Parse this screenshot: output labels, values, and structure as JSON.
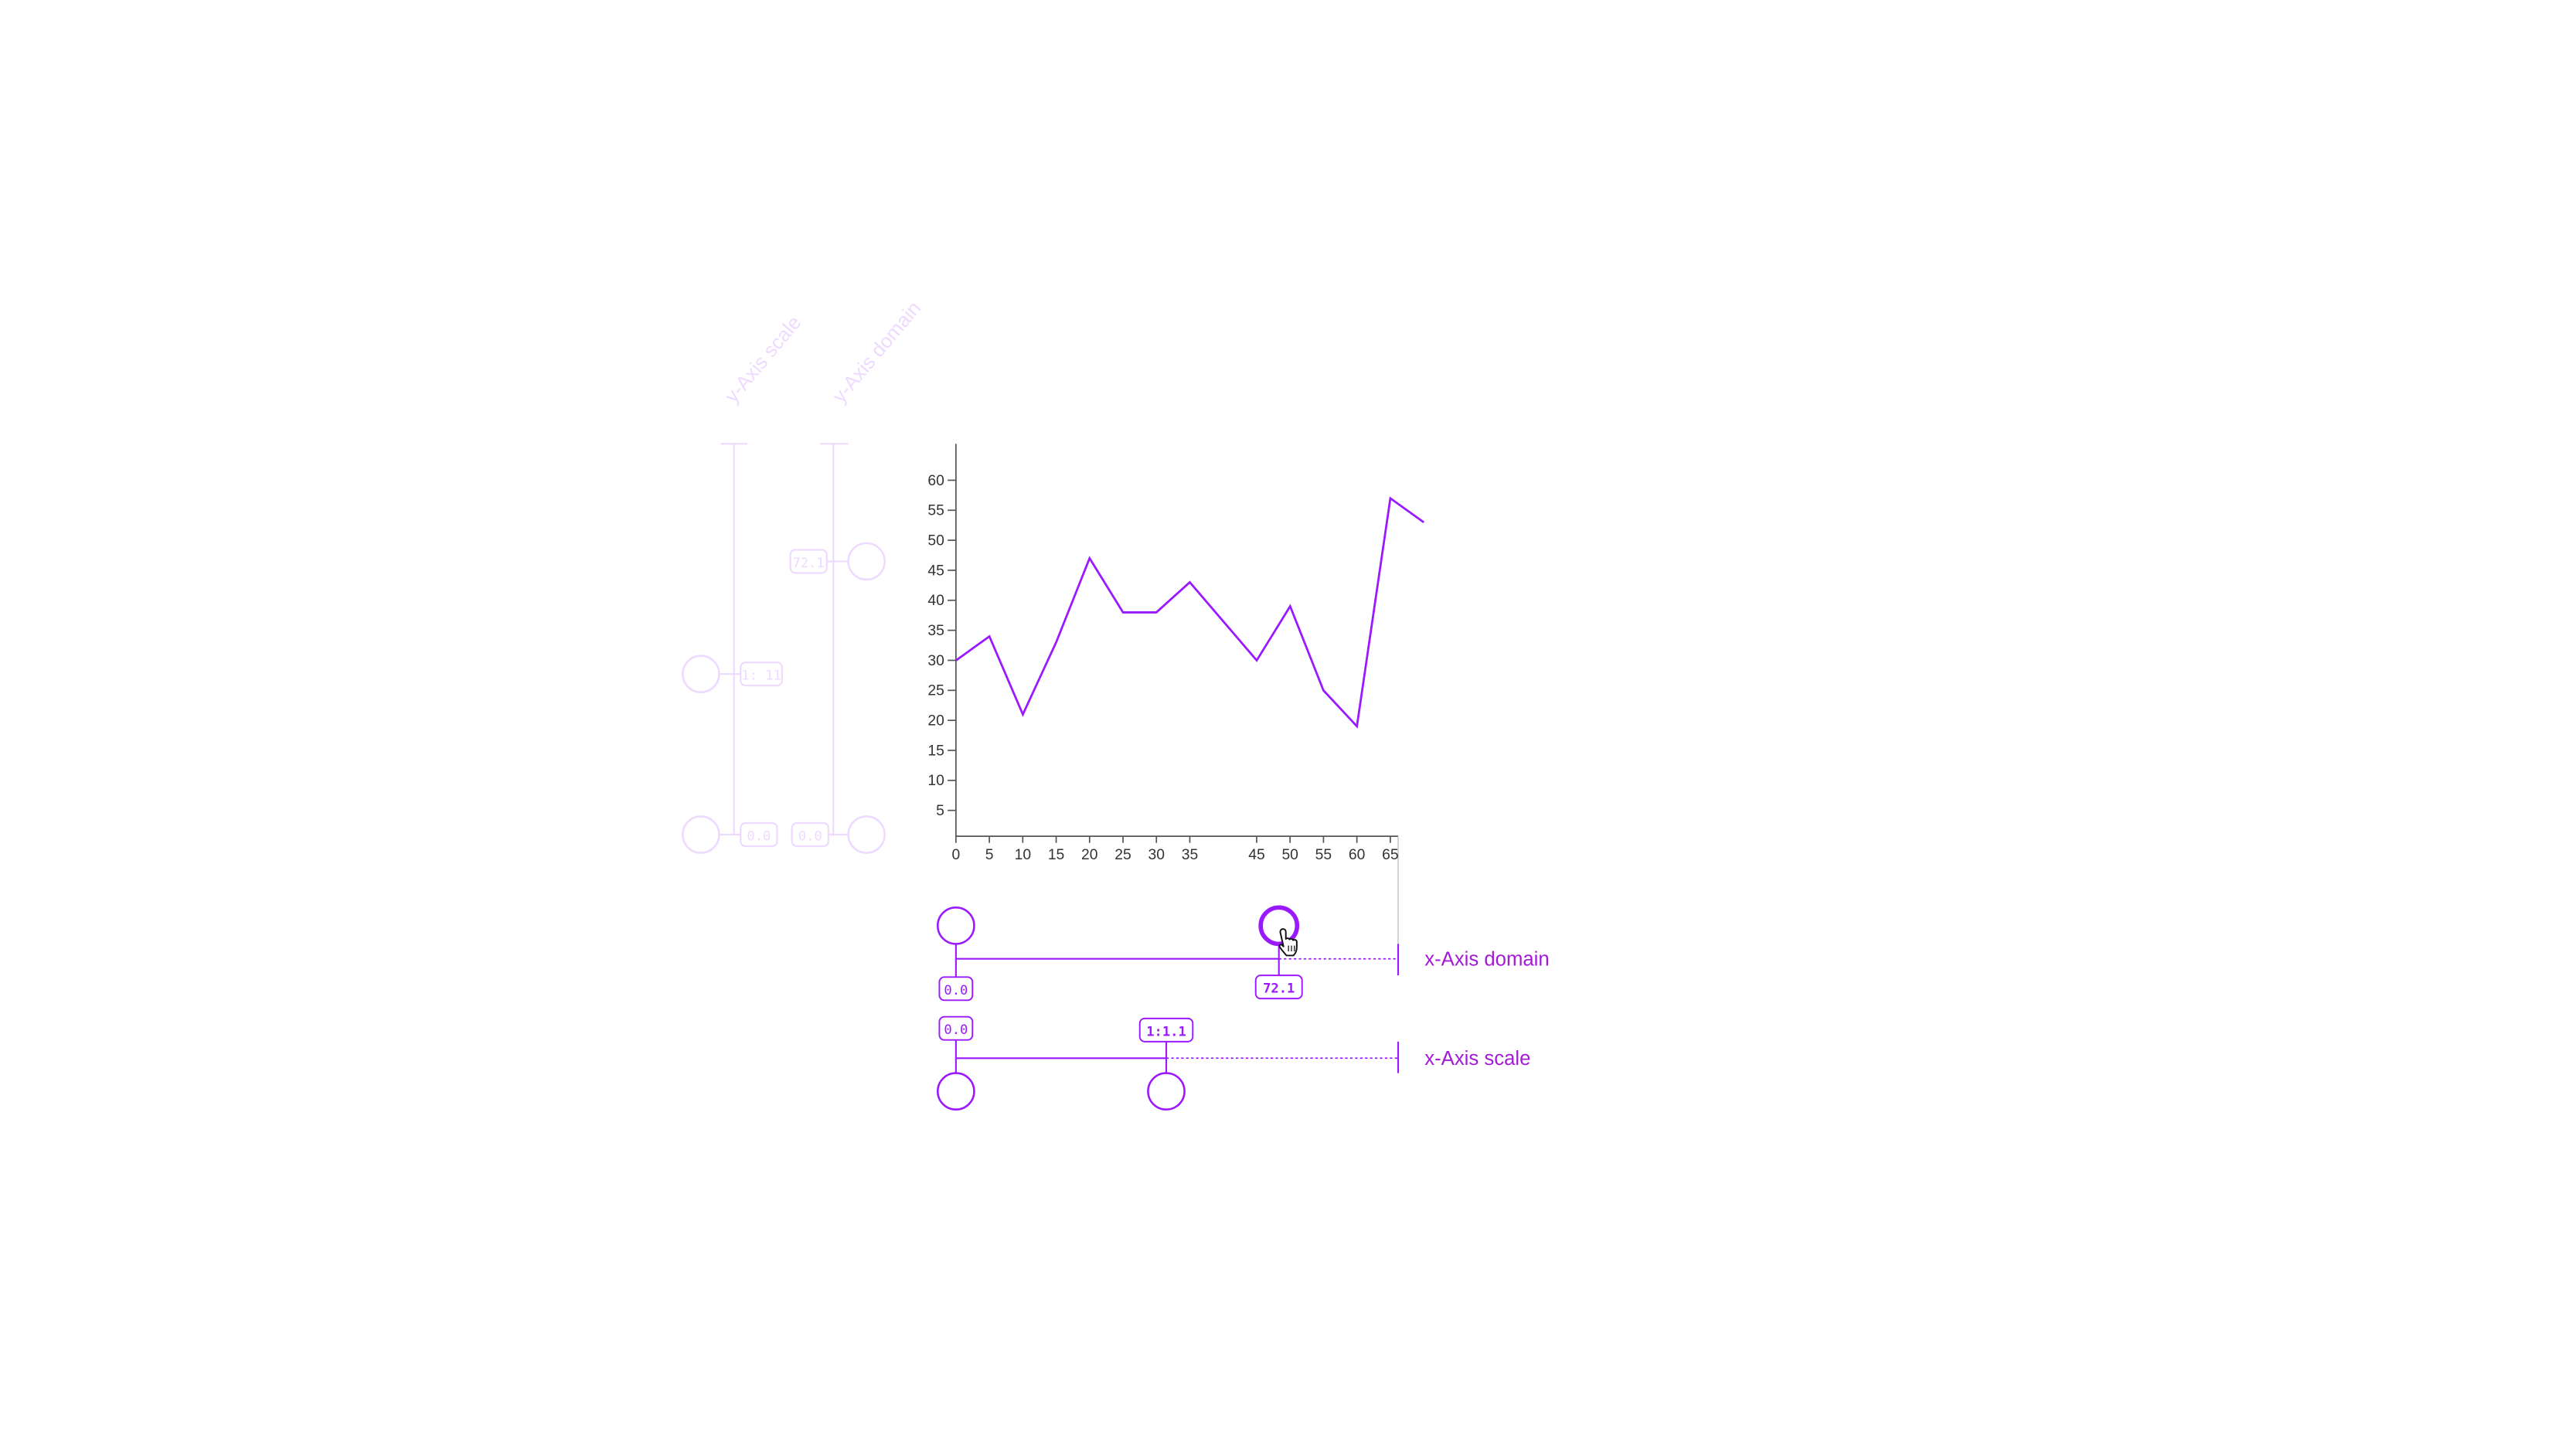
{
  "colors": {
    "accent": "#9b19ff",
    "accent_text": "#a31ad6",
    "axis": "#555555",
    "tick_text": "#333333",
    "faded_ui": "#b49cf0"
  },
  "chart_data": {
    "type": "line",
    "x": [
      0,
      5,
      10,
      15,
      20,
      25,
      30,
      35,
      45,
      50,
      55,
      60,
      65,
      70
    ],
    "y": [
      30,
      34,
      21,
      33,
      47,
      38,
      38,
      43,
      30,
      39,
      25,
      19,
      57,
      53
    ],
    "x_ticks": [
      "0",
      "5",
      "10",
      "15",
      "20",
      "25",
      "30",
      "35",
      "45",
      "50",
      "55",
      "60",
      "65"
    ],
    "y_ticks": [
      "5",
      "10",
      "15",
      "20",
      "25",
      "30",
      "35",
      "40",
      "45",
      "50",
      "55",
      "60"
    ],
    "grid": false,
    "title": "",
    "xlabel": "",
    "ylabel": ""
  },
  "controls": {
    "x_domain": {
      "label": "x-Axis domain",
      "min_value": "0.0",
      "max_value": "72.1",
      "cursor_icon": "hand-pointer-icon"
    },
    "x_scale": {
      "label": "x-Axis scale",
      "min_value": "0.0",
      "max_value": "1:1.1"
    },
    "y_scale": {
      "label": "y-Axis scale",
      "min_value": "0.0",
      "max_value": "1: 11"
    },
    "y_domain": {
      "label": "y-Axis domain",
      "min_value": "0.0",
      "max_value": "72.1"
    }
  }
}
